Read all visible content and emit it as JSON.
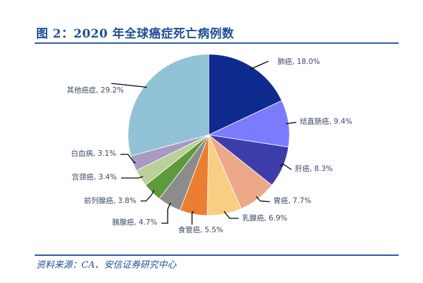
{
  "header": {
    "title": "图 2：2020 年全球癌症死亡病例数"
  },
  "footer": {
    "source": "资料来源：CA、安信证券研究中心"
  },
  "colors": {
    "title": "#1F4E96",
    "rule": "#2E5AA6",
    "label_text": "#3A4A66",
    "leader_line": "#000000"
  },
  "chart_data": {
    "type": "pie",
    "title": "2020 年全球癌症死亡病例数",
    "start_angle": "12 o'clock",
    "direction": "clockwise",
    "slices": [
      {
        "label": "肺癌",
        "value": 18.0,
        "text": "肺癌, 18.0%",
        "color": "#0F2A8F"
      },
      {
        "label": "结直肠癌",
        "value": 9.4,
        "text": "结直肠癌, 9.4%",
        "color": "#7B7BFF"
      },
      {
        "label": "肝癌",
        "value": 8.3,
        "text": "肝癌, 8.3%",
        "color": "#3D3DAA"
      },
      {
        "label": "胃癌",
        "value": 7.7,
        "text": "胃癌, 7.7%",
        "color": "#EDA88A"
      },
      {
        "label": "乳腺癌",
        "value": 6.9,
        "text": "乳腺癌, 6.9%",
        "color": "#F8CE84"
      },
      {
        "label": "食管癌",
        "value": 5.5,
        "text": "食管癌, 5.5%",
        "color": "#EB7E31"
      },
      {
        "label": "胰腺癌",
        "value": 4.7,
        "text": "胰腺癌, 4.7%",
        "color": "#8C8C8C"
      },
      {
        "label": "前列腺癌",
        "value": 3.8,
        "text": "前列腺癌, 3.8%",
        "color": "#5C9A3C"
      },
      {
        "label": "宫颈癌",
        "value": 3.4,
        "text": "宫颈癌, 3.4%",
        "color": "#BCD09A"
      },
      {
        "label": "白血病",
        "value": 3.1,
        "text": "白血病, 3.1%",
        "color": "#A89BC1"
      },
      {
        "label": "其他癌症",
        "value": 29.2,
        "text": "其他癌症, 29.2%",
        "color": "#92C2D6"
      }
    ],
    "unit": "%",
    "legend": "none (data labels with leader lines)"
  }
}
